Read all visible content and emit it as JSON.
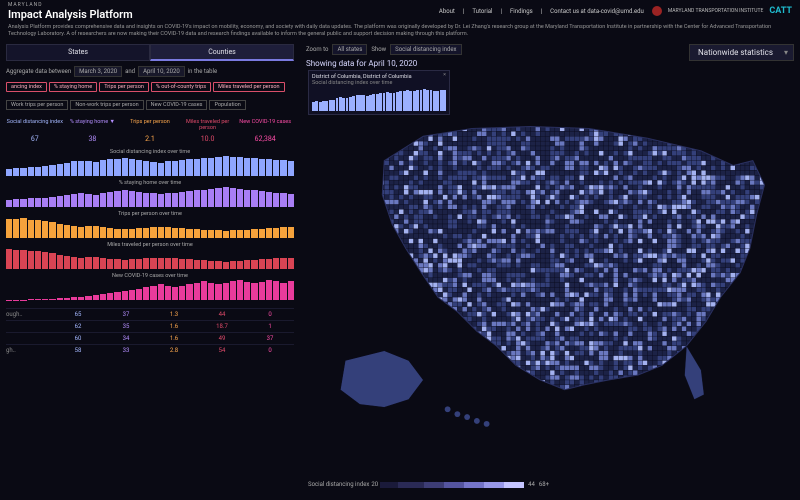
{
  "header": {
    "univ": "MARYLAND",
    "title": "Impact Analysis Platform",
    "nav": [
      "About",
      "Tutorial",
      "Findings",
      "Contact us at data-covid@umd.edu"
    ],
    "logo1": "MARYLAND TRANSPORTATION INSTITUTE",
    "logo2": "CATT"
  },
  "sub": "Analysis Platform provides comprehensive data and insights on COVID-19's impact on mobility, economy, and society with daily data updates. The platform was originally developed by Dr. Lei Zhang's research group at the Maryland Transportation Institute in partnership with the Center for Advanced Transportation Technology Laboratory. A of researchers are now making their COVID-19 data and research findings available to inform the general public and support decision making through this platform.",
  "tabs": {
    "states": "States",
    "counties": "Counties"
  },
  "agg": {
    "pre": "Aggregate data between",
    "d1": "March 3, 2020",
    "and": "and",
    "d2": "April 10, 2020",
    "post": "in the table"
  },
  "chips_row1": [
    "ancing index",
    "% staying home",
    "Trips per person",
    "% out-of-county trips",
    "Miles traveled per person"
  ],
  "chips_row2": [
    "Work trips per person",
    "Non-work trips per person",
    "New COVID-19 cases",
    "Population"
  ],
  "stat_head": [
    {
      "t": "Social distancing index",
      "c": "#a5b8ff"
    },
    {
      "t": "% staying home ▼",
      "c": "#b48eff"
    },
    {
      "t": "Trips per person",
      "c": "#ffa94d"
    },
    {
      "t": "Miles traveled per person",
      "c": "#e24b6b"
    },
    {
      "t": "New COVID-19 cases",
      "c": "#ff4da8"
    }
  ],
  "stat_vals": [
    {
      "v": "67",
      "c": "#a5b8ff"
    },
    {
      "v": "38",
      "c": "#b48eff"
    },
    {
      "v": "2.1",
      "c": "#ffa94d"
    },
    {
      "v": "10.0",
      "c": "#e24b6b"
    },
    {
      "v": "62,384",
      "c": "#ff4da8"
    }
  ],
  "charts": [
    {
      "t": "Social distancing index over time",
      "c": "#8fa6ff",
      "vals": [
        30,
        35,
        32,
        38,
        36,
        40,
        45,
        50,
        55,
        60,
        62,
        60,
        58,
        65,
        68,
        70,
        72,
        68,
        65,
        60,
        58,
        55,
        60,
        62,
        65,
        68,
        70,
        72,
        75,
        78,
        80,
        78,
        76,
        74,
        72,
        70,
        68,
        66,
        64,
        62
      ]
    },
    {
      "t": "% staying home over time",
      "c": "#a97ef5",
      "vals": [
        20,
        22,
        21,
        23,
        24,
        25,
        28,
        30,
        32,
        35,
        36,
        34,
        33,
        38,
        40,
        42,
        44,
        42,
        40,
        38,
        36,
        34,
        36,
        38,
        40,
        42,
        44,
        46,
        48,
        50,
        52,
        50,
        48,
        46,
        44,
        42,
        40,
        38,
        36,
        34
      ]
    },
    {
      "t": "Trips per person over time",
      "c": "#f5a23c",
      "vals": [
        80,
        78,
        82,
        76,
        74,
        70,
        65,
        60,
        55,
        50,
        48,
        50,
        52,
        45,
        42,
        40,
        38,
        40,
        42,
        44,
        46,
        48,
        46,
        44,
        42,
        40,
        38,
        36,
        34,
        32,
        30,
        32,
        34,
        36,
        38,
        40,
        42,
        44,
        46,
        48
      ]
    },
    {
      "t": "Miles traveled per person over time",
      "c": "#d94454",
      "vals": [
        85,
        80,
        82,
        78,
        76,
        72,
        68,
        62,
        58,
        54,
        50,
        52,
        54,
        48,
        45,
        42,
        40,
        42,
        44,
        46,
        48,
        50,
        48,
        46,
        44,
        42,
        40,
        38,
        36,
        34,
        32,
        34,
        36,
        38,
        40,
        42,
        44,
        46,
        48,
        50
      ]
    },
    {
      "t": "New COVID-19 cases over time",
      "c": "#e83b9b",
      "vals": [
        2,
        3,
        2,
        4,
        5,
        6,
        8,
        10,
        12,
        15,
        18,
        22,
        26,
        30,
        35,
        40,
        46,
        52,
        58,
        65,
        72,
        80,
        70,
        65,
        72,
        80,
        88,
        96,
        88,
        80,
        88,
        96,
        100,
        92,
        85,
        92,
        100,
        95,
        88,
        95
      ]
    }
  ],
  "table": {
    "rows": [
      {
        "n": "ough..",
        "a": "65",
        "b": "37",
        "c": "1.3",
        "d": "44",
        "e": "0"
      },
      {
        "n": "",
        "a": "62",
        "b": "35",
        "c": "1.6",
        "d": "18.7",
        "e": "1"
      },
      {
        "n": "",
        "a": "60",
        "b": "34",
        "c": "1.6",
        "d": "49",
        "e": "37"
      },
      {
        "n": "gh..",
        "a": "58",
        "b": "33",
        "c": "2.8",
        "d": "54",
        "e": "0"
      }
    ]
  },
  "zoom": {
    "lbl": "Zoom to",
    "val": "All states",
    "show": "Show",
    "metric": "Social distancing index"
  },
  "nation": "Nationwide statistics",
  "dateline": "Showing data for April 10, 2020",
  "popup": {
    "title": "District of Columbia, District of Columbia",
    "sub": "Social distancing index over time",
    "vals": [
      40,
      42,
      38,
      45,
      43,
      48,
      50,
      55,
      60,
      58,
      56,
      62,
      65,
      68,
      70,
      68,
      66,
      70,
      72,
      75,
      78,
      80,
      82,
      80,
      78,
      82,
      85,
      88,
      90,
      88,
      86,
      90,
      92,
      94,
      92,
      90,
      88,
      86,
      90,
      92
    ]
  },
  "legend": {
    "lbl": "Social distancing index",
    "stops": [
      "20",
      "44",
      "68+"
    ],
    "colors": [
      "#1a1a3a",
      "#2a2a55",
      "#3d3d75",
      "#5555a0",
      "#7474c8",
      "#9898e8",
      "#c4c4ff"
    ],
    "widths": [
      18,
      26,
      20,
      20,
      20,
      20,
      20
    ]
  },
  "map_colors": {
    "dark": "#1c2246",
    "mid": "#34407a",
    "light": "#6a78c0",
    "bright": "#a4b2f0",
    "stroke": "#0a0a1a"
  }
}
